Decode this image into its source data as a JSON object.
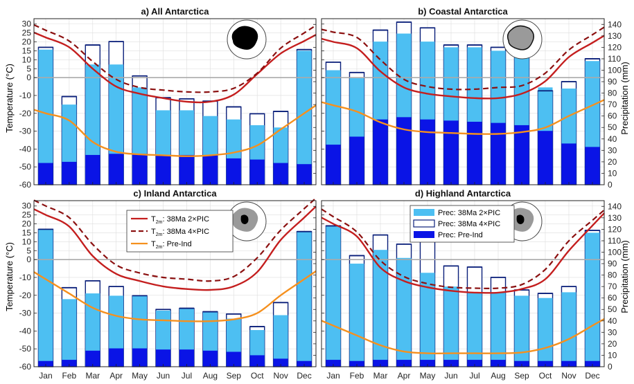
{
  "figure": {
    "left_ylabel": "Temperature (°C)",
    "right_ylabel": "Precipitation (mm)",
    "colors": {
      "prec_2x": "#4dbff2",
      "prec_4x_edge": "#0a1f7a",
      "prec_pi": "#0a14e6",
      "t_2x": "#c41e1e",
      "t_4x": "#8b1010",
      "t_pi": "#f5901e",
      "grid": "#dddddd",
      "zero_line": "#aaaaaa"
    }
  },
  "legend": {
    "t_2x": "38Ma 2×PIC",
    "t_4x": "38Ma 4×PIC",
    "t_pi": "Pre-Ind",
    "t_prefix_base": "T",
    "t_prefix_sub": "2m",
    "prec_2x": "Prec: 38Ma 2×PIC",
    "prec_4x": "Prec: 38Ma 4×PIC",
    "prec_pi": "Prec: Pre-Ind"
  },
  "chart_data": [
    {
      "type": "bar",
      "panel": "a",
      "title": "a) All Antarctica",
      "categories": [
        "Jan",
        "Feb",
        "Mar",
        "Apr",
        "May",
        "Jun",
        "Jul",
        "Aug",
        "Sep",
        "Oct",
        "Nov",
        "Dec"
      ],
      "ylim_temperature": [
        -60,
        33
      ],
      "ylim_precipitation": [
        0,
        145
      ],
      "temperature_ticks": [
        -60,
        -50,
        -40,
        -30,
        -20,
        -10,
        0,
        5,
        10,
        15,
        20,
        25,
        30
      ],
      "precipitation_ticks": [
        0,
        10,
        20,
        30,
        40,
        50,
        60,
        70,
        80,
        90,
        100,
        110,
        120,
        130,
        140
      ],
      "precipitation": {
        "38Ma_2xPIC": [
          118,
          70,
          105,
          105,
          85,
          65,
          65,
          60,
          57,
          52,
          50,
          117
        ],
        "38Ma_4xPIC": [
          120,
          77,
          122,
          125,
          95,
          76,
          75,
          73,
          68,
          62,
          64,
          118
        ],
        "Pre-Ind": [
          19,
          20,
          26,
          27,
          27,
          26,
          26,
          26,
          23,
          22,
          19,
          18
        ]
      },
      "temperature": {
        "38Ma_2xPIC": [
          22.5,
          17,
          5,
          -5,
          -9,
          -11.5,
          -13.5,
          -13.5,
          -9.5,
          2,
          13.5,
          20.5
        ],
        "38Ma_4xPIC": [
          26.5,
          20.5,
          9,
          -1,
          -5.5,
          -7,
          -8,
          -8,
          -6,
          2.5,
          16.5,
          25
        ],
        "Pre-Ind": [
          -20,
          -24,
          -36,
          -41.5,
          -43,
          -43.5,
          -44,
          -43.5,
          -42,
          -38,
          -29,
          -20
        ]
      }
    },
    {
      "type": "bar",
      "panel": "b",
      "title": "b) Coastal Antarctica",
      "categories": [
        "Jan",
        "Feb",
        "Mar",
        "Apr",
        "May",
        "Jun",
        "Jul",
        "Aug",
        "Sep",
        "Oct",
        "Nov",
        "Dec"
      ],
      "ylim_temperature": [
        -60,
        33
      ],
      "ylim_precipitation": [
        0,
        145
      ],
      "temperature_ticks": [
        -60,
        -50,
        -40,
        -30,
        -20,
        -10,
        0,
        5,
        10,
        15,
        20,
        25,
        30
      ],
      "precipitation_ticks": [
        0,
        10,
        20,
        30,
        40,
        50,
        60,
        70,
        80,
        90,
        100,
        110,
        120,
        130,
        140
      ],
      "precipitation": {
        "38Ma_2xPIC": [
          100,
          93,
          125,
          132,
          125,
          120,
          120,
          117,
          112,
          85,
          84,
          108
        ],
        "38Ma_4xPIC": [
          107,
          98,
          135,
          142,
          137,
          122,
          122,
          120,
          115,
          82,
          90,
          110
        ],
        "Pre-Ind": [
          35,
          42,
          57,
          59,
          57,
          56,
          55,
          54,
          52,
          47,
          36,
          33
        ]
      },
      "temperature": {
        "38Ma_2xPIC": [
          20,
          16.5,
          3.5,
          -5.5,
          -9,
          -10.5,
          -11.5,
          -11.5,
          -9,
          -2,
          11.5,
          19.5
        ],
        "38Ma_4xPIC": [
          25.5,
          22.5,
          10,
          -1,
          -5,
          -6.5,
          -6.5,
          -5.5,
          -4.5,
          2.5,
          15.5,
          24
        ],
        "Pre-Ind": [
          -15.5,
          -19,
          -25,
          -29,
          -30.5,
          -31,
          -31.5,
          -31.5,
          -30.5,
          -28,
          -21.5,
          -15.5
        ]
      }
    },
    {
      "type": "bar",
      "panel": "c",
      "title": "c) Inland Antarctica",
      "categories": [
        "Jan",
        "Feb",
        "Mar",
        "Apr",
        "May",
        "Jun",
        "Jul",
        "Aug",
        "Sep",
        "Oct",
        "Nov",
        "Dec"
      ],
      "ylim_temperature": [
        -60,
        33
      ],
      "ylim_precipitation": [
        0,
        145
      ],
      "temperature_ticks": [
        -60,
        -50,
        -40,
        -30,
        -20,
        -10,
        0,
        5,
        10,
        15,
        20,
        25,
        30
      ],
      "precipitation_ticks": [
        0,
        10,
        20,
        30,
        40,
        50,
        60,
        70,
        80,
        90,
        100,
        110,
        120,
        130,
        140
      ],
      "precipitation": {
        "38Ma_2xPIC": [
          120,
          59,
          64,
          62,
          62,
          49,
          51,
          48,
          42,
          32,
          45,
          118
        ],
        "38Ma_4xPIC": [
          120,
          69,
          75,
          70,
          62,
          50,
          51,
          48,
          46,
          35,
          56,
          118
        ],
        "Pre-Ind": [
          5,
          6,
          14,
          16,
          16,
          15,
          15,
          14,
          13,
          10,
          7,
          5
        ]
      },
      "temperature": {
        "38Ma_2xPIC": [
          25,
          18.5,
          2,
          -8,
          -12,
          -15,
          -16.5,
          -17,
          -15,
          -7,
          11,
          23.5
        ],
        "38Ma_4xPIC": [
          30,
          23.5,
          8.5,
          -3,
          -7.5,
          -10,
          -11,
          -12,
          -9.5,
          1,
          16.5,
          28.5
        ],
        "Pre-Ind": [
          -11,
          -19,
          -27,
          -31.5,
          -33.5,
          -34,
          -34.5,
          -34.5,
          -33.5,
          -30,
          -20,
          -11
        ]
      }
    },
    {
      "type": "bar",
      "panel": "d",
      "title": "d) Highland Antarctica",
      "categories": [
        "Jan",
        "Feb",
        "Mar",
        "Apr",
        "May",
        "Jun",
        "Jul",
        "Aug",
        "Sep",
        "Oct",
        "Nov",
        "Dec"
      ],
      "ylim_temperature": [
        -60,
        33
      ],
      "ylim_precipitation": [
        0,
        145
      ],
      "temperature_ticks": [
        -60,
        -50,
        -40,
        -30,
        -20,
        -10,
        0,
        5,
        10,
        15,
        20,
        25,
        30
      ],
      "precipitation_ticks": [
        0,
        10,
        20,
        30,
        40,
        50,
        60,
        70,
        80,
        90,
        100,
        110,
        120,
        130,
        140
      ],
      "precipitation": {
        "38Ma_2xPIC": [
          123,
          90,
          102,
          95,
          82,
          70,
          65,
          65,
          62,
          60,
          65,
          117
        ],
        "38Ma_4xPIC": [
          123,
          97,
          115,
          107,
          119,
          88,
          87,
          78,
          67,
          64,
          70,
          119
        ],
        "Pre-Ind": [
          6,
          5,
          6,
          6,
          6,
          6,
          6,
          6,
          5,
          5,
          5,
          5
        ]
      },
      "temperature": {
        "38Ma_2xPIC": [
          20,
          13,
          -4.5,
          -12,
          -15.5,
          -17.5,
          -18.5,
          -18.5,
          -16.5,
          -11,
          5,
          19
        ],
        "38Ma_4xPIC": [
          24,
          15.5,
          -0.5,
          -9.5,
          -13.5,
          -15.5,
          -16,
          -16,
          -14,
          -5.5,
          10.5,
          22
        ],
        "Pre-Ind": [
          -37,
          -42.5,
          -48,
          -51.5,
          -52.5,
          -52.5,
          -52.5,
          -52.5,
          -52,
          -49.5,
          -44.5,
          -37
        ]
      }
    }
  ]
}
